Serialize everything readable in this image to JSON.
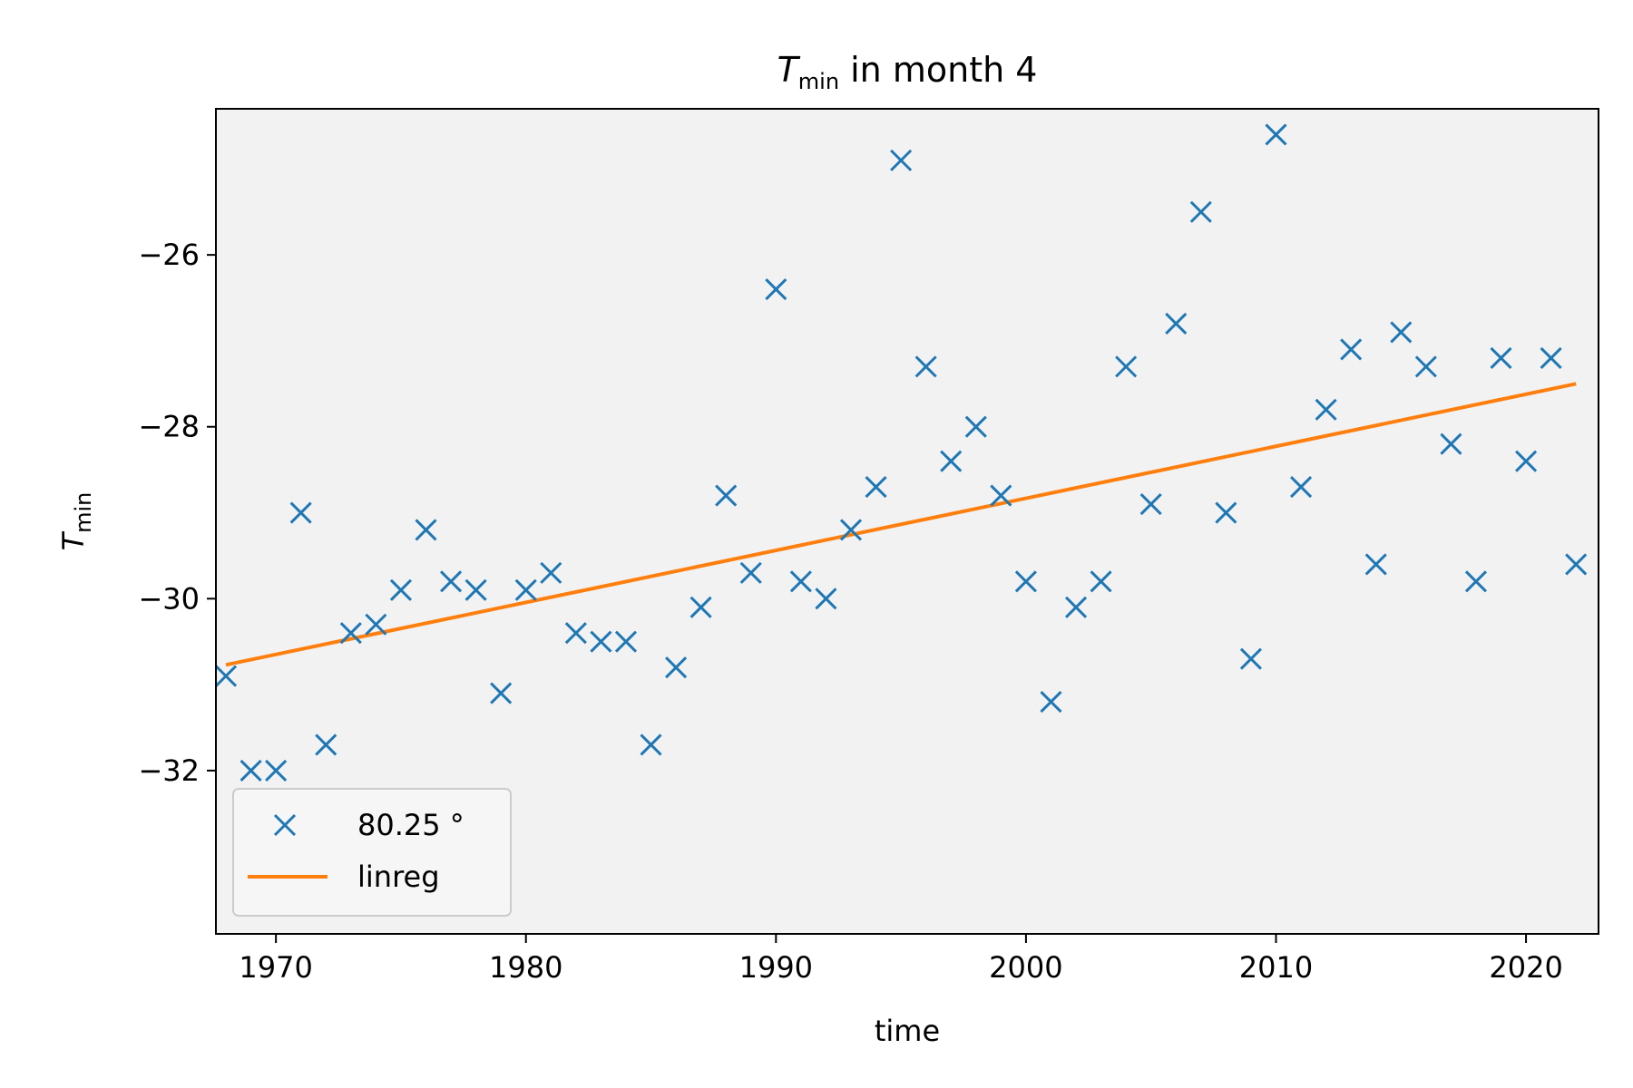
{
  "chart_data": {
    "type": "scatter",
    "title": {
      "italic": "T",
      "sub": "min",
      "rest": " in month 4"
    },
    "xlabel": "time",
    "ylabel": {
      "italic": "T",
      "sub": "min"
    },
    "xlim": [
      1967.6,
      2022.9
    ],
    "ylim": [
      -33.9,
      -24.3
    ],
    "x_ticks": [
      1970,
      1980,
      1990,
      2000,
      2010,
      2020
    ],
    "y_ticks": [
      -32,
      -30,
      -28,
      -26
    ],
    "x_tick_labels": [
      "1970",
      "1980",
      "1990",
      "2000",
      "2010",
      "2020"
    ],
    "y_tick_labels": [
      "−32",
      "−30",
      "−28",
      "−26"
    ],
    "grid": false,
    "legend_placement": "lower-left",
    "series": [
      {
        "name": "80.25 °",
        "kind": "scatter",
        "marker": "x",
        "color": "#1f77b4",
        "points": [
          [
            1968,
            -30.9
          ],
          [
            1969,
            -32.0
          ],
          [
            1970,
            -32.0
          ],
          [
            1971,
            -29.0
          ],
          [
            1972,
            -31.7
          ],
          [
            1973,
            -30.4
          ],
          [
            1974,
            -30.3
          ],
          [
            1975,
            -29.9
          ],
          [
            1976,
            -29.2
          ],
          [
            1977,
            -29.8
          ],
          [
            1978,
            -29.9
          ],
          [
            1979,
            -31.1
          ],
          [
            1980,
            -29.9
          ],
          [
            1981,
            -29.7
          ],
          [
            1982,
            -30.4
          ],
          [
            1983,
            -30.5
          ],
          [
            1984,
            -30.5
          ],
          [
            1985,
            -31.7
          ],
          [
            1986,
            -30.8
          ],
          [
            1987,
            -30.1
          ],
          [
            1988,
            -28.8
          ],
          [
            1989,
            -29.7
          ],
          [
            1990,
            -26.4
          ],
          [
            1991,
            -29.8
          ],
          [
            1992,
            -30.0
          ],
          [
            1993,
            -29.2
          ],
          [
            1994,
            -28.7
          ],
          [
            1995,
            -24.9
          ],
          [
            1996,
            -27.3
          ],
          [
            1997,
            -28.4
          ],
          [
            1998,
            -28.0
          ],
          [
            1999,
            -28.8
          ],
          [
            2000,
            -29.8
          ],
          [
            2001,
            -31.2
          ],
          [
            2002,
            -30.1
          ],
          [
            2003,
            -29.8
          ],
          [
            2004,
            -27.3
          ],
          [
            2005,
            -28.9
          ],
          [
            2006,
            -26.8
          ],
          [
            2007,
            -25.5
          ],
          [
            2008,
            -29.0
          ],
          [
            2009,
            -30.7
          ],
          [
            2010,
            -24.6
          ],
          [
            2011,
            -28.7
          ],
          [
            2012,
            -27.8
          ],
          [
            2013,
            -27.1
          ],
          [
            2014,
            -29.6
          ],
          [
            2015,
            -26.9
          ],
          [
            2016,
            -27.3
          ],
          [
            2017,
            -28.2
          ],
          [
            2018,
            -29.8
          ],
          [
            2019,
            -27.2
          ],
          [
            2020,
            -28.4
          ],
          [
            2021,
            -27.2
          ],
          [
            2022,
            -29.6
          ]
        ]
      },
      {
        "name": "linreg",
        "kind": "line",
        "color": "#ff7f0e",
        "points": [
          [
            1968,
            -30.77
          ],
          [
            2022,
            -27.5
          ]
        ]
      }
    ]
  }
}
